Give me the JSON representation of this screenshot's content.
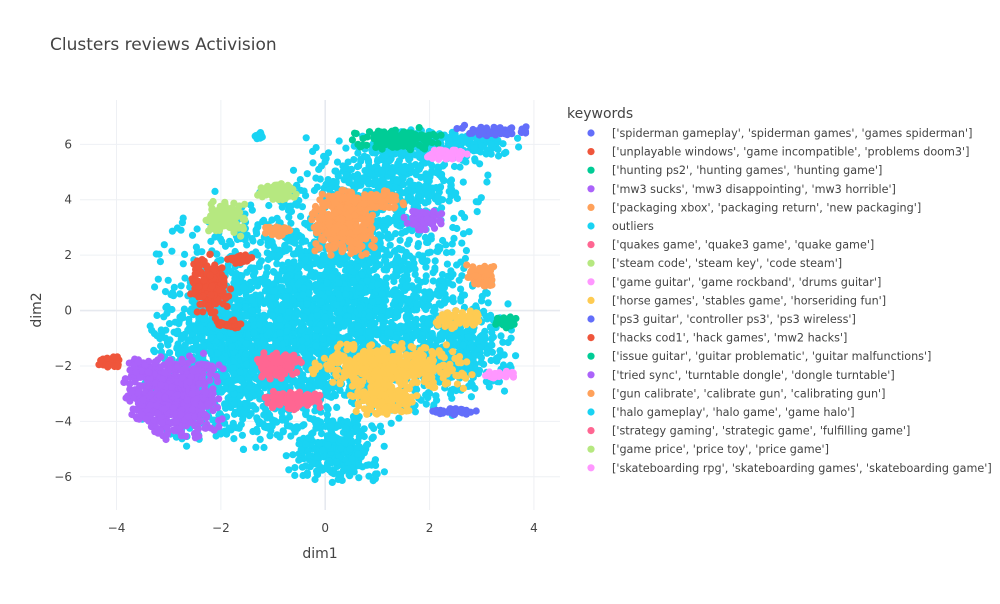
{
  "chart_data": {
    "type": "scatter",
    "title": "Clusters reviews Activision",
    "xlabel": "dim1",
    "ylabel": "dim2",
    "xlim": [
      -4.7,
      4.5
    ],
    "ylim": [
      -7.2,
      7.6
    ],
    "x_ticks": [
      -4,
      -2,
      0,
      2,
      4
    ],
    "y_ticks": [
      -6,
      -4,
      -2,
      0,
      2,
      4,
      6
    ],
    "grid": true,
    "legend_position": "right",
    "legend_title": "keywords",
    "series": [
      {
        "name": "['spiderman gameplay', 'spiderman games', 'games spiderman']",
        "color": "#636efa",
        "clusters": [
          {
            "cx": 3.3,
            "cy": 6.45,
            "rx": 0.65,
            "ry": 0.22,
            "n": 55
          }
        ]
      },
      {
        "name": "['unplayable windows', 'game incompatible', 'problems doom3']",
        "color": "#EF553B",
        "clusters": [
          {
            "cx": -2.2,
            "cy": 0.9,
            "rx": 0.35,
            "ry": 1.0,
            "n": 150
          },
          {
            "cx": -1.6,
            "cy": 1.85,
            "rx": 0.25,
            "ry": 0.15,
            "n": 25
          },
          {
            "cx": -1.85,
            "cy": -0.5,
            "rx": 0.2,
            "ry": 0.15,
            "n": 20
          },
          {
            "cx": -4.15,
            "cy": -1.9,
            "rx": 0.2,
            "ry": 0.25,
            "n": 25
          }
        ]
      },
      {
        "name": "['hunting ps2', 'hunting games', 'hunting game']",
        "color": "#00cc96",
        "clusters": [
          {
            "cx": 1.35,
            "cy": 6.2,
            "rx": 0.75,
            "ry": 0.35,
            "n": 130
          }
        ]
      },
      {
        "name": "['mw3 sucks', 'mw3 disappointing', 'mw3 horrible']",
        "color": "#ab63fa",
        "clusters": [
          {
            "cx": -2.9,
            "cy": -3.1,
            "rx": 0.8,
            "ry": 1.3,
            "n": 700
          },
          {
            "cx": -3.5,
            "cy": -2.1,
            "rx": 0.3,
            "ry": 0.4,
            "n": 80
          }
        ]
      },
      {
        "name": "['packaging xbox', 'packaging return', 'new packaging']",
        "color": "#FFA15A",
        "clusters": [
          {
            "cx": 0.35,
            "cy": 3.0,
            "rx": 0.55,
            "ry": 0.9,
            "n": 320
          },
          {
            "cx": 0.75,
            "cy": 4.0,
            "rx": 0.7,
            "ry": 0.35,
            "n": 120
          },
          {
            "cx": 3.0,
            "cy": 1.2,
            "rx": 0.28,
            "ry": 0.4,
            "n": 60
          },
          {
            "cx": -0.9,
            "cy": 2.9,
            "rx": 0.25,
            "ry": 0.15,
            "n": 20
          }
        ]
      },
      {
        "name": "outliers",
        "color": "#19d3f3",
        "clusters": [
          {
            "cx": 0.0,
            "cy": 0.0,
            "rx": 2.7,
            "ry": 3.6,
            "n": 2600
          },
          {
            "cx": 1.2,
            "cy": 4.5,
            "rx": 1.6,
            "ry": 1.5,
            "n": 500
          },
          {
            "cx": 2.2,
            "cy": 6.0,
            "rx": 1.3,
            "ry": 0.5,
            "n": 220
          },
          {
            "cx": -1.6,
            "cy": -2.0,
            "rx": 1.6,
            "ry": 2.6,
            "n": 900
          },
          {
            "cx": 0.2,
            "cy": -5.0,
            "rx": 0.8,
            "ry": 1.1,
            "n": 300
          },
          {
            "cx": 2.5,
            "cy": -1.5,
            "rx": 1.0,
            "ry": 1.6,
            "n": 350
          },
          {
            "cx": -1.3,
            "cy": 6.3,
            "rx": 0.1,
            "ry": 0.1,
            "n": 8
          }
        ]
      },
      {
        "name": "['quakes game', 'quake3 game', 'quake game']",
        "color": "#FF6692",
        "clusters": [
          {
            "cx": -0.6,
            "cy": -3.25,
            "rx": 0.5,
            "ry": 0.28,
            "n": 120
          },
          {
            "cx": -0.9,
            "cy": -2.05,
            "rx": 0.35,
            "ry": 0.45,
            "n": 50
          }
        ]
      },
      {
        "name": "['steam code', 'steam key', 'code steam']",
        "color": "#B6E880",
        "clusters": [
          {
            "cx": -1.9,
            "cy": 3.3,
            "rx": 0.35,
            "ry": 0.55,
            "n": 120
          },
          {
            "cx": -0.95,
            "cy": 4.3,
            "rx": 0.3,
            "ry": 0.25,
            "n": 45
          }
        ]
      },
      {
        "name": "['game guitar', 'game rockband', 'drums guitar']",
        "color": "#FF97FF",
        "clusters": [
          {
            "cx": 3.35,
            "cy": -2.3,
            "rx": 0.3,
            "ry": 0.15,
            "n": 35
          }
        ]
      },
      {
        "name": "['horse games', 'stables game', 'horseriding fun']",
        "color": "#FECB52",
        "clusters": [
          {
            "cx": 1.3,
            "cy": -2.0,
            "rx": 1.3,
            "ry": 0.7,
            "n": 450
          },
          {
            "cx": 1.15,
            "cy": -3.2,
            "rx": 0.6,
            "ry": 0.55,
            "n": 150
          },
          {
            "cx": 2.6,
            "cy": -0.3,
            "rx": 0.45,
            "ry": 0.3,
            "n": 60
          }
        ]
      },
      {
        "name": "['ps3 guitar', 'controller ps3', 'ps3 wireless']",
        "color": "#636efa",
        "clusters": [
          {
            "cx": 2.5,
            "cy": -3.65,
            "rx": 0.5,
            "ry": 0.12,
            "n": 40
          }
        ]
      },
      {
        "name": "['hacks cod1', 'hack games', 'mw2 hacks']",
        "color": "#EF553B",
        "clusters": [
          {
            "cx": -1.65,
            "cy": 1.85,
            "rx": 0.2,
            "ry": 0.12,
            "n": 15
          }
        ]
      },
      {
        "name": "['issue guitar', 'guitar problematic', 'guitar malfunctions']",
        "color": "#00cc96",
        "clusters": [
          {
            "cx": 3.45,
            "cy": -0.45,
            "rx": 0.2,
            "ry": 0.25,
            "n": 30
          }
        ]
      },
      {
        "name": "['tried sync', 'turntable dongle', 'dongle turntable']",
        "color": "#ab63fa",
        "clusters": [
          {
            "cx": 1.9,
            "cy": 3.25,
            "rx": 0.35,
            "ry": 0.35,
            "n": 60
          }
        ]
      },
      {
        "name": "['gun calibrate', 'calibrate gun', 'calibrating gun']",
        "color": "#FFA15A",
        "clusters": [
          {
            "cx": -0.9,
            "cy": 2.85,
            "rx": 0.25,
            "ry": 0.15,
            "n": 25
          }
        ]
      },
      {
        "name": "['halo gameplay', 'halo game', 'game halo']",
        "color": "#19d3f3",
        "clusters": [
          {
            "cx": -1.25,
            "cy": 6.35,
            "rx": 0.08,
            "ry": 0.08,
            "n": 8
          }
        ]
      },
      {
        "name": "['strategy gaming', 'strategic game', 'fulfilling game']",
        "color": "#FF6692",
        "clusters": [
          {
            "cx": -0.9,
            "cy": -1.9,
            "rx": 0.4,
            "ry": 0.45,
            "n": 50
          }
        ]
      },
      {
        "name": "['game price', 'price toy', 'price game']",
        "color": "#B6E880",
        "clusters": [
          {
            "cx": -0.9,
            "cy": 4.3,
            "rx": 0.3,
            "ry": 0.25,
            "n": 40
          }
        ]
      },
      {
        "name": "['skateboarding rpg', 'skateboarding games', 'skateboarding game']",
        "color": "#FF97FF",
        "clusters": [
          {
            "cx": 2.3,
            "cy": 5.65,
            "rx": 0.35,
            "ry": 0.2,
            "n": 55
          }
        ]
      }
    ]
  }
}
